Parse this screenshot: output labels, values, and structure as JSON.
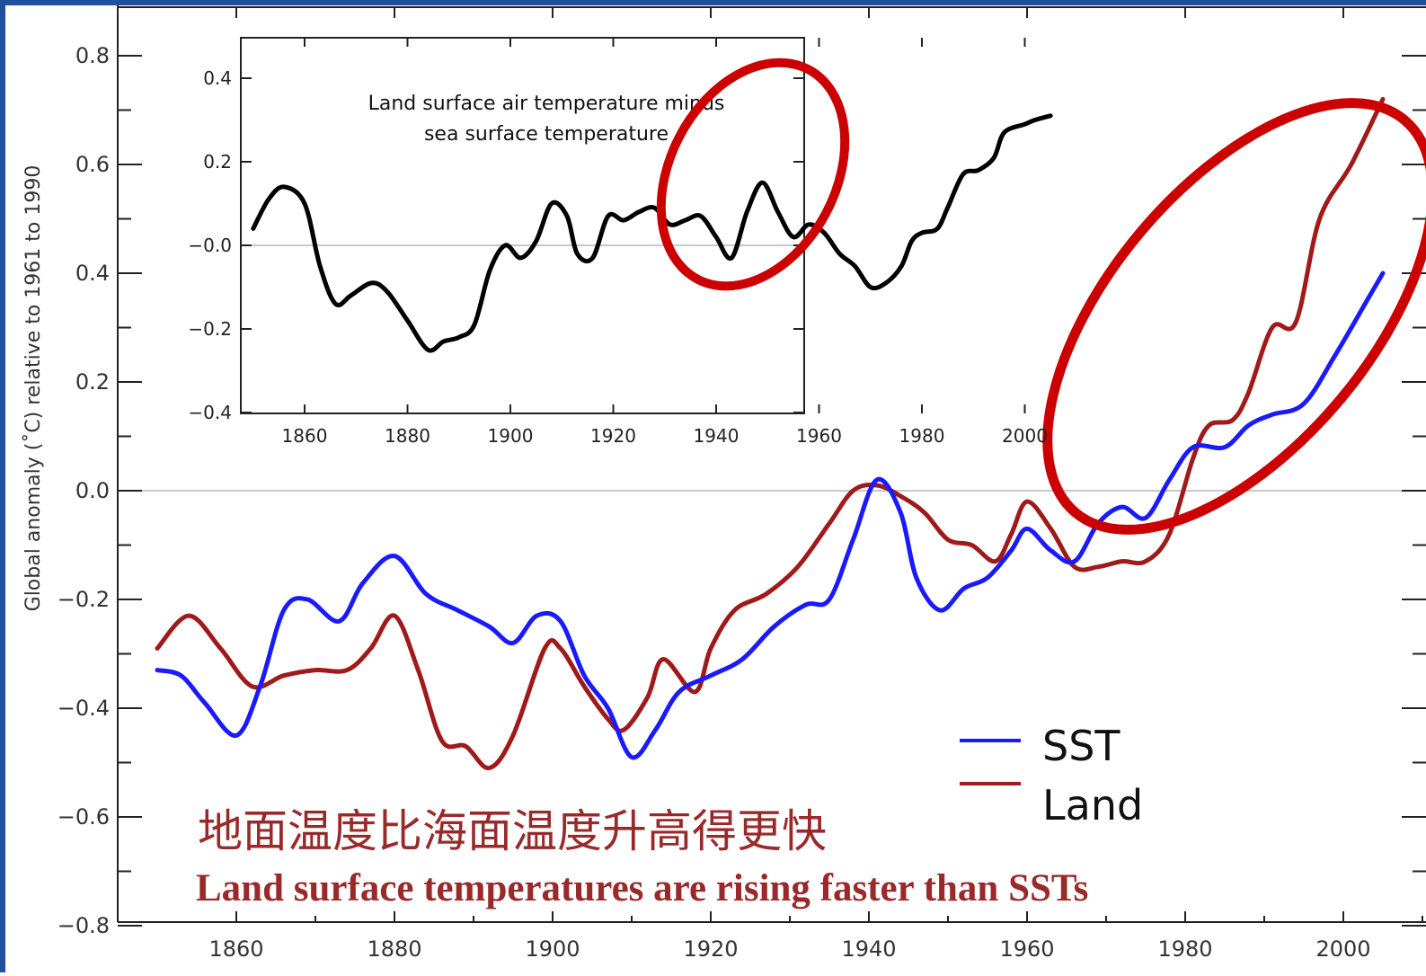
{
  "chart_data": [
    {
      "type": "line",
      "title": "",
      "xlabel": "",
      "ylabel": "Global anomaly (˚C)  relative to 1961 to 1990",
      "xlim": [
        1845,
        2012
      ],
      "ylim": [
        -0.8,
        0.85
      ],
      "x_ticks": [
        "1860",
        "1880",
        "1900",
        "1920",
        "1940",
        "1960",
        "1980",
        "2000"
      ],
      "y_ticks": [
        "0.8",
        "0.6",
        "0.4",
        "0.2",
        "0.0",
        "−0.2",
        "−0.4",
        "−0.6",
        "−0.8"
      ],
      "grid": false,
      "zero_line": true,
      "legend_position": "bottom-right",
      "series": [
        {
          "name": "SST",
          "color": "#1a1aff",
          "x": [
            1850,
            1853,
            1856,
            1860,
            1863,
            1866,
            1869,
            1873,
            1876,
            1880,
            1884,
            1888,
            1892,
            1895,
            1898,
            1901,
            1904,
            1907,
            1910,
            1913,
            1916,
            1920,
            1924,
            1928,
            1932,
            1935,
            1938,
            1941,
            1944,
            1946,
            1949,
            1952,
            1955,
            1958,
            1960,
            1963,
            1966,
            1969,
            1972,
            1975,
            1978,
            1981,
            1985,
            1988,
            1991,
            1995,
            1999,
            2003,
            2005
          ],
          "values": [
            -0.33,
            -0.34,
            -0.39,
            -0.45,
            -0.36,
            -0.22,
            -0.2,
            -0.24,
            -0.17,
            -0.12,
            -0.19,
            -0.22,
            -0.25,
            -0.28,
            -0.23,
            -0.24,
            -0.34,
            -0.4,
            -0.49,
            -0.44,
            -0.37,
            -0.34,
            -0.31,
            -0.25,
            -0.21,
            -0.2,
            -0.09,
            0.02,
            -0.04,
            -0.16,
            -0.22,
            -0.18,
            -0.16,
            -0.11,
            -0.07,
            -0.11,
            -0.13,
            -0.06,
            -0.03,
            -0.05,
            0.02,
            0.08,
            0.08,
            0.12,
            0.14,
            0.16,
            0.25,
            0.35,
            0.4
          ]
        },
        {
          "name": "Land",
          "color": "#a01a1a",
          "x": [
            1850,
            1854,
            1858,
            1862,
            1866,
            1870,
            1874,
            1877,
            1880,
            1883,
            1886,
            1889,
            1892,
            1895,
            1899,
            1901,
            1904,
            1907,
            1909,
            1912,
            1914,
            1918,
            1920,
            1923,
            1927,
            1931,
            1935,
            1938,
            1941,
            1944,
            1947,
            1950,
            1953,
            1956,
            1958,
            1960,
            1963,
            1966,
            1969,
            1972,
            1975,
            1978,
            1981,
            1983,
            1986,
            1988,
            1991,
            1994,
            1997,
            2001,
            2005
          ],
          "values": [
            -0.29,
            -0.23,
            -0.29,
            -0.36,
            -0.34,
            -0.33,
            -0.33,
            -0.29,
            -0.23,
            -0.33,
            -0.46,
            -0.47,
            -0.51,
            -0.45,
            -0.29,
            -0.29,
            -0.36,
            -0.42,
            -0.44,
            -0.38,
            -0.31,
            -0.37,
            -0.29,
            -0.22,
            -0.19,
            -0.14,
            -0.06,
            0.0,
            0.01,
            -0.01,
            -0.04,
            -0.09,
            -0.1,
            -0.13,
            -0.08,
            -0.02,
            -0.07,
            -0.14,
            -0.14,
            -0.13,
            -0.13,
            -0.08,
            0.06,
            0.12,
            0.13,
            0.18,
            0.3,
            0.31,
            0.5,
            0.6,
            0.72
          ]
        }
      ]
    },
    {
      "type": "line",
      "title": "Land surface air temperature minus sea surface temperature",
      "xlabel": "",
      "ylabel": "",
      "xlim": [
        1845,
        2010
      ],
      "ylim": [
        -0.4,
        0.5
      ],
      "x_ticks": [
        "1860",
        "1880",
        "1900",
        "1920",
        "1940",
        "1960",
        "1980",
        "2000"
      ],
      "y_ticks": [
        "0.4",
        "0.2",
        "−0.0",
        "−0.2",
        "−0.4"
      ],
      "zero_line": true,
      "series": [
        {
          "color": "#000000",
          "x": [
            1850,
            1853,
            1856,
            1860,
            1863,
            1866,
            1869,
            1873,
            1876,
            1880,
            1884,
            1887,
            1890,
            1893,
            1896,
            1899,
            1902,
            1905,
            1908,
            1911,
            1913,
            1916,
            1919,
            1922,
            1925,
            1928,
            1931,
            1934,
            1937,
            1940,
            1943,
            1946,
            1949,
            1952,
            1955,
            1958,
            1961,
            1964,
            1967,
            1970,
            1973,
            1976,
            1978,
            1980,
            1983,
            1985,
            1988,
            1991,
            1994,
            1996,
            2000,
            2002,
            2005
          ],
          "values": [
            0.04,
            0.11,
            0.14,
            0.1,
            -0.05,
            -0.14,
            -0.12,
            -0.09,
            -0.11,
            -0.18,
            -0.25,
            -0.23,
            -0.22,
            -0.19,
            -0.06,
            0.0,
            -0.03,
            0.01,
            0.1,
            0.07,
            -0.02,
            -0.03,
            0.07,
            0.06,
            0.08,
            0.09,
            0.05,
            0.06,
            0.07,
            0.02,
            -0.03,
            0.08,
            0.15,
            0.08,
            0.02,
            0.05,
            0.03,
            -0.02,
            -0.05,
            -0.1,
            -0.09,
            -0.05,
            0.01,
            0.03,
            0.04,
            0.09,
            0.17,
            0.18,
            0.21,
            0.27,
            0.29,
            0.3,
            0.31
          ]
        }
      ]
    }
  ],
  "legend": {
    "sst_label": "SST",
    "land_label": "Land"
  },
  "captions": {
    "chinese": "地面温度比海面温度升高得更快",
    "english": "Land surface temperatures are rising faster than SSTs"
  },
  "colors": {
    "sst": "#1a1aff",
    "land": "#a01a1a",
    "highlight": "#cc0000",
    "caption": "#9a2a2a",
    "frame": "#1f4f9e"
  }
}
